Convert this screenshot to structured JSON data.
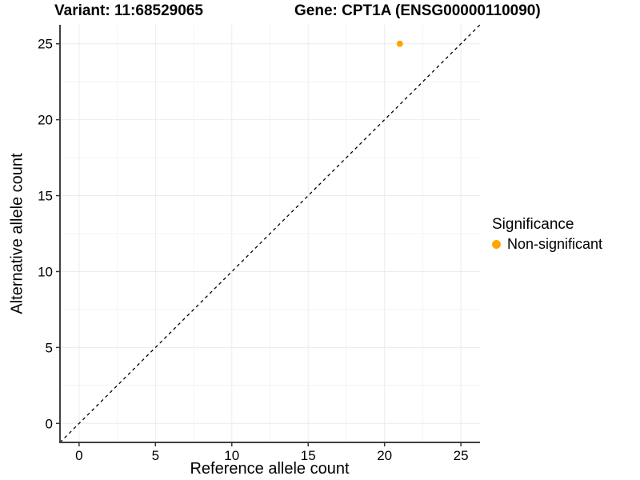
{
  "titles": {
    "variant": "Variant: 11:68529065",
    "gene": "Gene: CPT1A (ENSG00000110090)"
  },
  "chart_data": {
    "type": "scatter",
    "xlabel": "Reference allele count",
    "ylabel": "Alternative allele count",
    "xlim": [
      -1.25,
      26.25
    ],
    "ylim": [
      -1.25,
      26.25
    ],
    "xticks": [
      0,
      5,
      10,
      15,
      20,
      25
    ],
    "yticks": [
      0,
      5,
      10,
      15,
      20,
      25
    ],
    "minor_xticks": [
      2.5,
      7.5,
      12.5,
      17.5,
      22.5
    ],
    "minor_yticks": [
      2.5,
      7.5,
      12.5,
      17.5,
      22.5
    ],
    "grid": true,
    "identity_line": {
      "slope": 1,
      "intercept": 0,
      "style": "dashed"
    },
    "series": [
      {
        "name": "Non-significant",
        "color": "#FFA500",
        "points": [
          {
            "x": 21,
            "y": 25
          }
        ]
      }
    ],
    "legend": {
      "title": "Significance",
      "position": "right",
      "items": [
        {
          "label": "Non-significant",
          "color": "#FFA500"
        }
      ]
    }
  },
  "colors": {
    "background": "#FFFFFF",
    "axis_line": "#404040",
    "tick_mark": "#333333",
    "grid_major": "#ECECEC",
    "grid_minor": "#F4F4F4",
    "identity_line": "#000000",
    "text": "#000000",
    "point": "#FFA500"
  }
}
